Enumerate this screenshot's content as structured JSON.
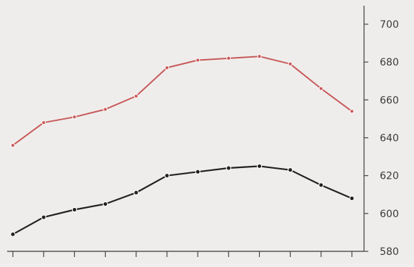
{
  "chart_data": {
    "type": "line",
    "title": "",
    "xlabel": "",
    "ylabel": "",
    "x": [
      1,
      2,
      3,
      4,
      5,
      6,
      7,
      8,
      9,
      10,
      11,
      12
    ],
    "x_tick_labels": [
      "",
      "",
      "",
      "",
      "",
      "",
      "",
      "",
      "",
      "",
      "",
      ""
    ],
    "ylim": [
      580,
      700
    ],
    "y_ticks": [
      580,
      600,
      620,
      640,
      660,
      680,
      700
    ],
    "y_tick_labels": [
      "580",
      "600",
      "620",
      "640",
      "660",
      "680",
      "700"
    ],
    "y_axis_side": "right",
    "grid": false,
    "series": [
      {
        "color": "#c75a5a",
        "values": [
          636,
          648,
          651,
          655,
          662,
          677,
          681,
          682,
          683,
          679,
          666,
          654
        ]
      },
      {
        "color": "#222222",
        "values": [
          589,
          598,
          602,
          605,
          611,
          620,
          622,
          624,
          625,
          623,
          615,
          608
        ]
      }
    ]
  }
}
